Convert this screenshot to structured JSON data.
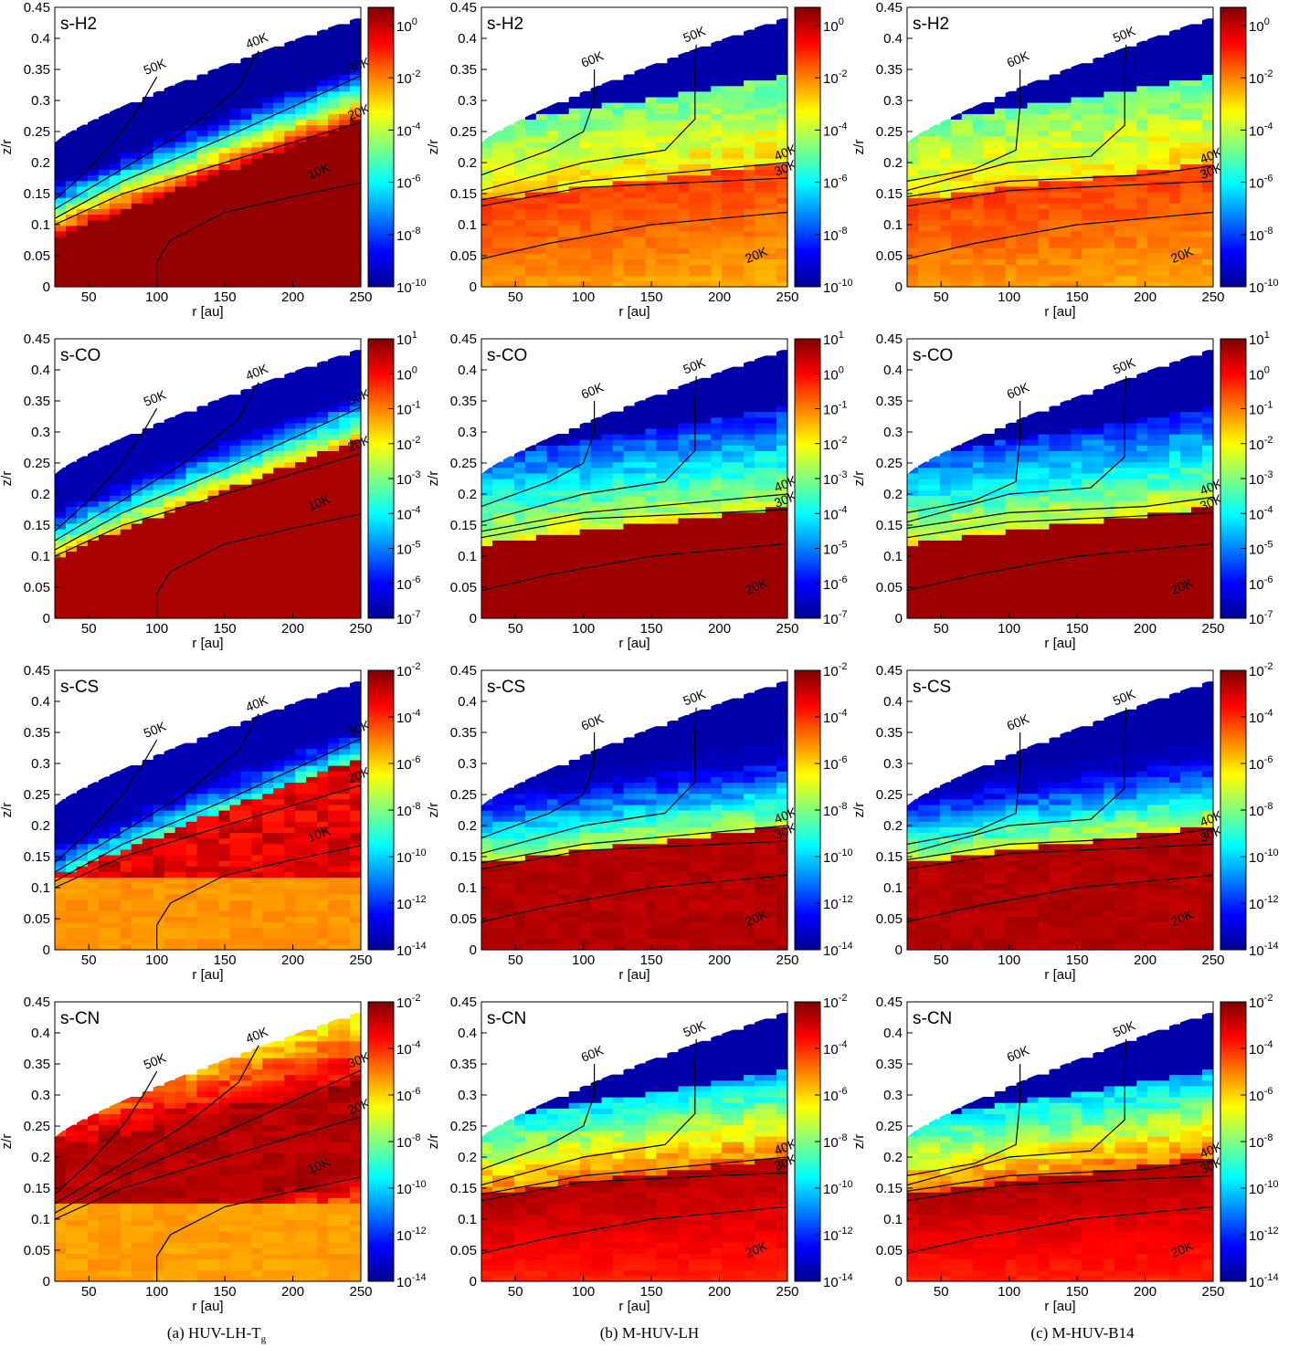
{
  "figure": {
    "captions": [
      {
        "prefix": "(a) HUV-LH-T",
        "sub": "g"
      },
      {
        "prefix": "(b) M-HUV-LH",
        "sub": ""
      },
      {
        "prefix": "(c) M-HUV-B14",
        "sub": ""
      }
    ]
  },
  "chart_data": {
    "type": "heatmap",
    "description_of_values": "fractional abundance colour maps; colour scale is logarithmic",
    "xlabel": "r [au]",
    "ylabel": "z/r",
    "xlim": [
      25,
      250
    ],
    "ylim": [
      0,
      0.45
    ],
    "xticks": [
      "50",
      "100",
      "150",
      "200",
      "250"
    ],
    "yticks": [
      "0",
      "0.05",
      "0.1",
      "0.15",
      "0.2",
      "0.25",
      "0.3",
      "0.35",
      "0.4",
      "0.45"
    ],
    "colormap": [
      "#00008f",
      "#0000ff",
      "#0080ff",
      "#00ffff",
      "#80ff80",
      "#ffff00",
      "#ff8000",
      "#ff0000",
      "#800000"
    ],
    "rows": [
      {
        "species": "s-H2",
        "cbar_exponents": [
          0,
          -2,
          -4,
          -6,
          -8,
          -10
        ],
        "cbar_range": [
          -10,
          0.7
        ]
      },
      {
        "species": "s-CO",
        "cbar_exponents": [
          1,
          0,
          -1,
          -2,
          -3,
          -4,
          -5,
          -6,
          -7
        ],
        "cbar_range": [
          -7,
          1
        ]
      },
      {
        "species": "s-CS",
        "cbar_exponents": [
          -2,
          -4,
          -6,
          -8,
          -10,
          -12,
          -14
        ],
        "cbar_range": [
          -14,
          -2
        ]
      },
      {
        "species": "s-CN",
        "cbar_exponents": [
          -2,
          -4,
          -6,
          -8,
          -10,
          -12,
          -14
        ],
        "cbar_range": [
          -14,
          -2
        ]
      }
    ],
    "columns": [
      {
        "model": "HUV-LH-Tg",
        "contours": [
          {
            "label": "50K",
            "points": [
              [
                25,
                0.14
              ],
              [
                50,
                0.19
              ],
              [
                75,
                0.25
              ],
              [
                90,
                0.3
              ],
              [
                100,
                0.338
              ]
            ]
          },
          {
            "label": "40K",
            "points": [
              [
                25,
                0.125
              ],
              [
                75,
                0.19
              ],
              [
                120,
                0.25
              ],
              [
                160,
                0.32
              ],
              [
                175,
                0.38
              ]
            ]
          },
          {
            "label": "30K",
            "points": [
              [
                25,
                0.11
              ],
              [
                75,
                0.17
              ],
              [
                150,
                0.24
              ],
              [
                250,
                0.34
              ]
            ]
          },
          {
            "label": "20K",
            "points": [
              [
                25,
                0.1
              ],
              [
                75,
                0.15
              ],
              [
                150,
                0.2
              ],
              [
                250,
                0.265
              ]
            ]
          },
          {
            "label": "10K",
            "points": [
              [
                100,
                0
              ],
              [
                100,
                0.04
              ],
              [
                110,
                0.075
              ],
              [
                150,
                0.12
              ],
              [
                200,
                0.145
              ],
              [
                250,
                0.168
              ]
            ]
          }
        ]
      },
      {
        "model": "M-HUV-LH",
        "contours": [
          {
            "label": "60K",
            "points": [
              [
                25,
                0.18
              ],
              [
                75,
                0.22
              ],
              [
                100,
                0.25
              ],
              [
                108,
                0.3
              ],
              [
                108,
                0.35
              ]
            ]
          },
          {
            "label": "50K",
            "points": [
              [
                25,
                0.155
              ],
              [
                100,
                0.2
              ],
              [
                160,
                0.22
              ],
              [
                182,
                0.27
              ],
              [
                182,
                0.35
              ],
              [
                183,
                0.39
              ]
            ]
          },
          {
            "label": "40K",
            "points": [
              [
                25,
                0.14
              ],
              [
                100,
                0.17
              ],
              [
                200,
                0.19
              ],
              [
                250,
                0.2
              ]
            ]
          },
          {
            "label": "30K",
            "points": [
              [
                25,
                0.13
              ],
              [
                100,
                0.16
              ],
              [
                200,
                0.17
              ],
              [
                250,
                0.175
              ]
            ]
          },
          {
            "label": "20K",
            "points": [
              [
                25,
                0.045
              ],
              [
                75,
                0.07
              ],
              [
                150,
                0.1
              ],
              [
                200,
                0.11
              ],
              [
                250,
                0.12
              ]
            ]
          }
        ]
      },
      {
        "model": "M-HUV-B14",
        "contours": [
          {
            "label": "60K",
            "points": [
              [
                25,
                0.17
              ],
              [
                75,
                0.19
              ],
              [
                105,
                0.22
              ],
              [
                108,
                0.29
              ],
              [
                108,
                0.35
              ]
            ]
          },
          {
            "label": "50K",
            "points": [
              [
                25,
                0.155
              ],
              [
                100,
                0.2
              ],
              [
                160,
                0.21
              ],
              [
                185,
                0.26
              ],
              [
                185,
                0.34
              ],
              [
                186,
                0.39
              ]
            ]
          },
          {
            "label": "40K",
            "points": [
              [
                25,
                0.145
              ],
              [
                100,
                0.17
              ],
              [
                200,
                0.18
              ],
              [
                250,
                0.195
              ]
            ]
          },
          {
            "label": "30K",
            "points": [
              [
                25,
                0.13
              ],
              [
                100,
                0.155
              ],
              [
                200,
                0.165
              ],
              [
                250,
                0.17
              ]
            ]
          },
          {
            "label": "20K",
            "points": [
              [
                25,
                0.045
              ],
              [
                75,
                0.07
              ],
              [
                150,
                0.1
              ],
              [
                200,
                0.11
              ],
              [
                250,
                0.12
              ]
            ]
          }
        ]
      }
    ]
  }
}
